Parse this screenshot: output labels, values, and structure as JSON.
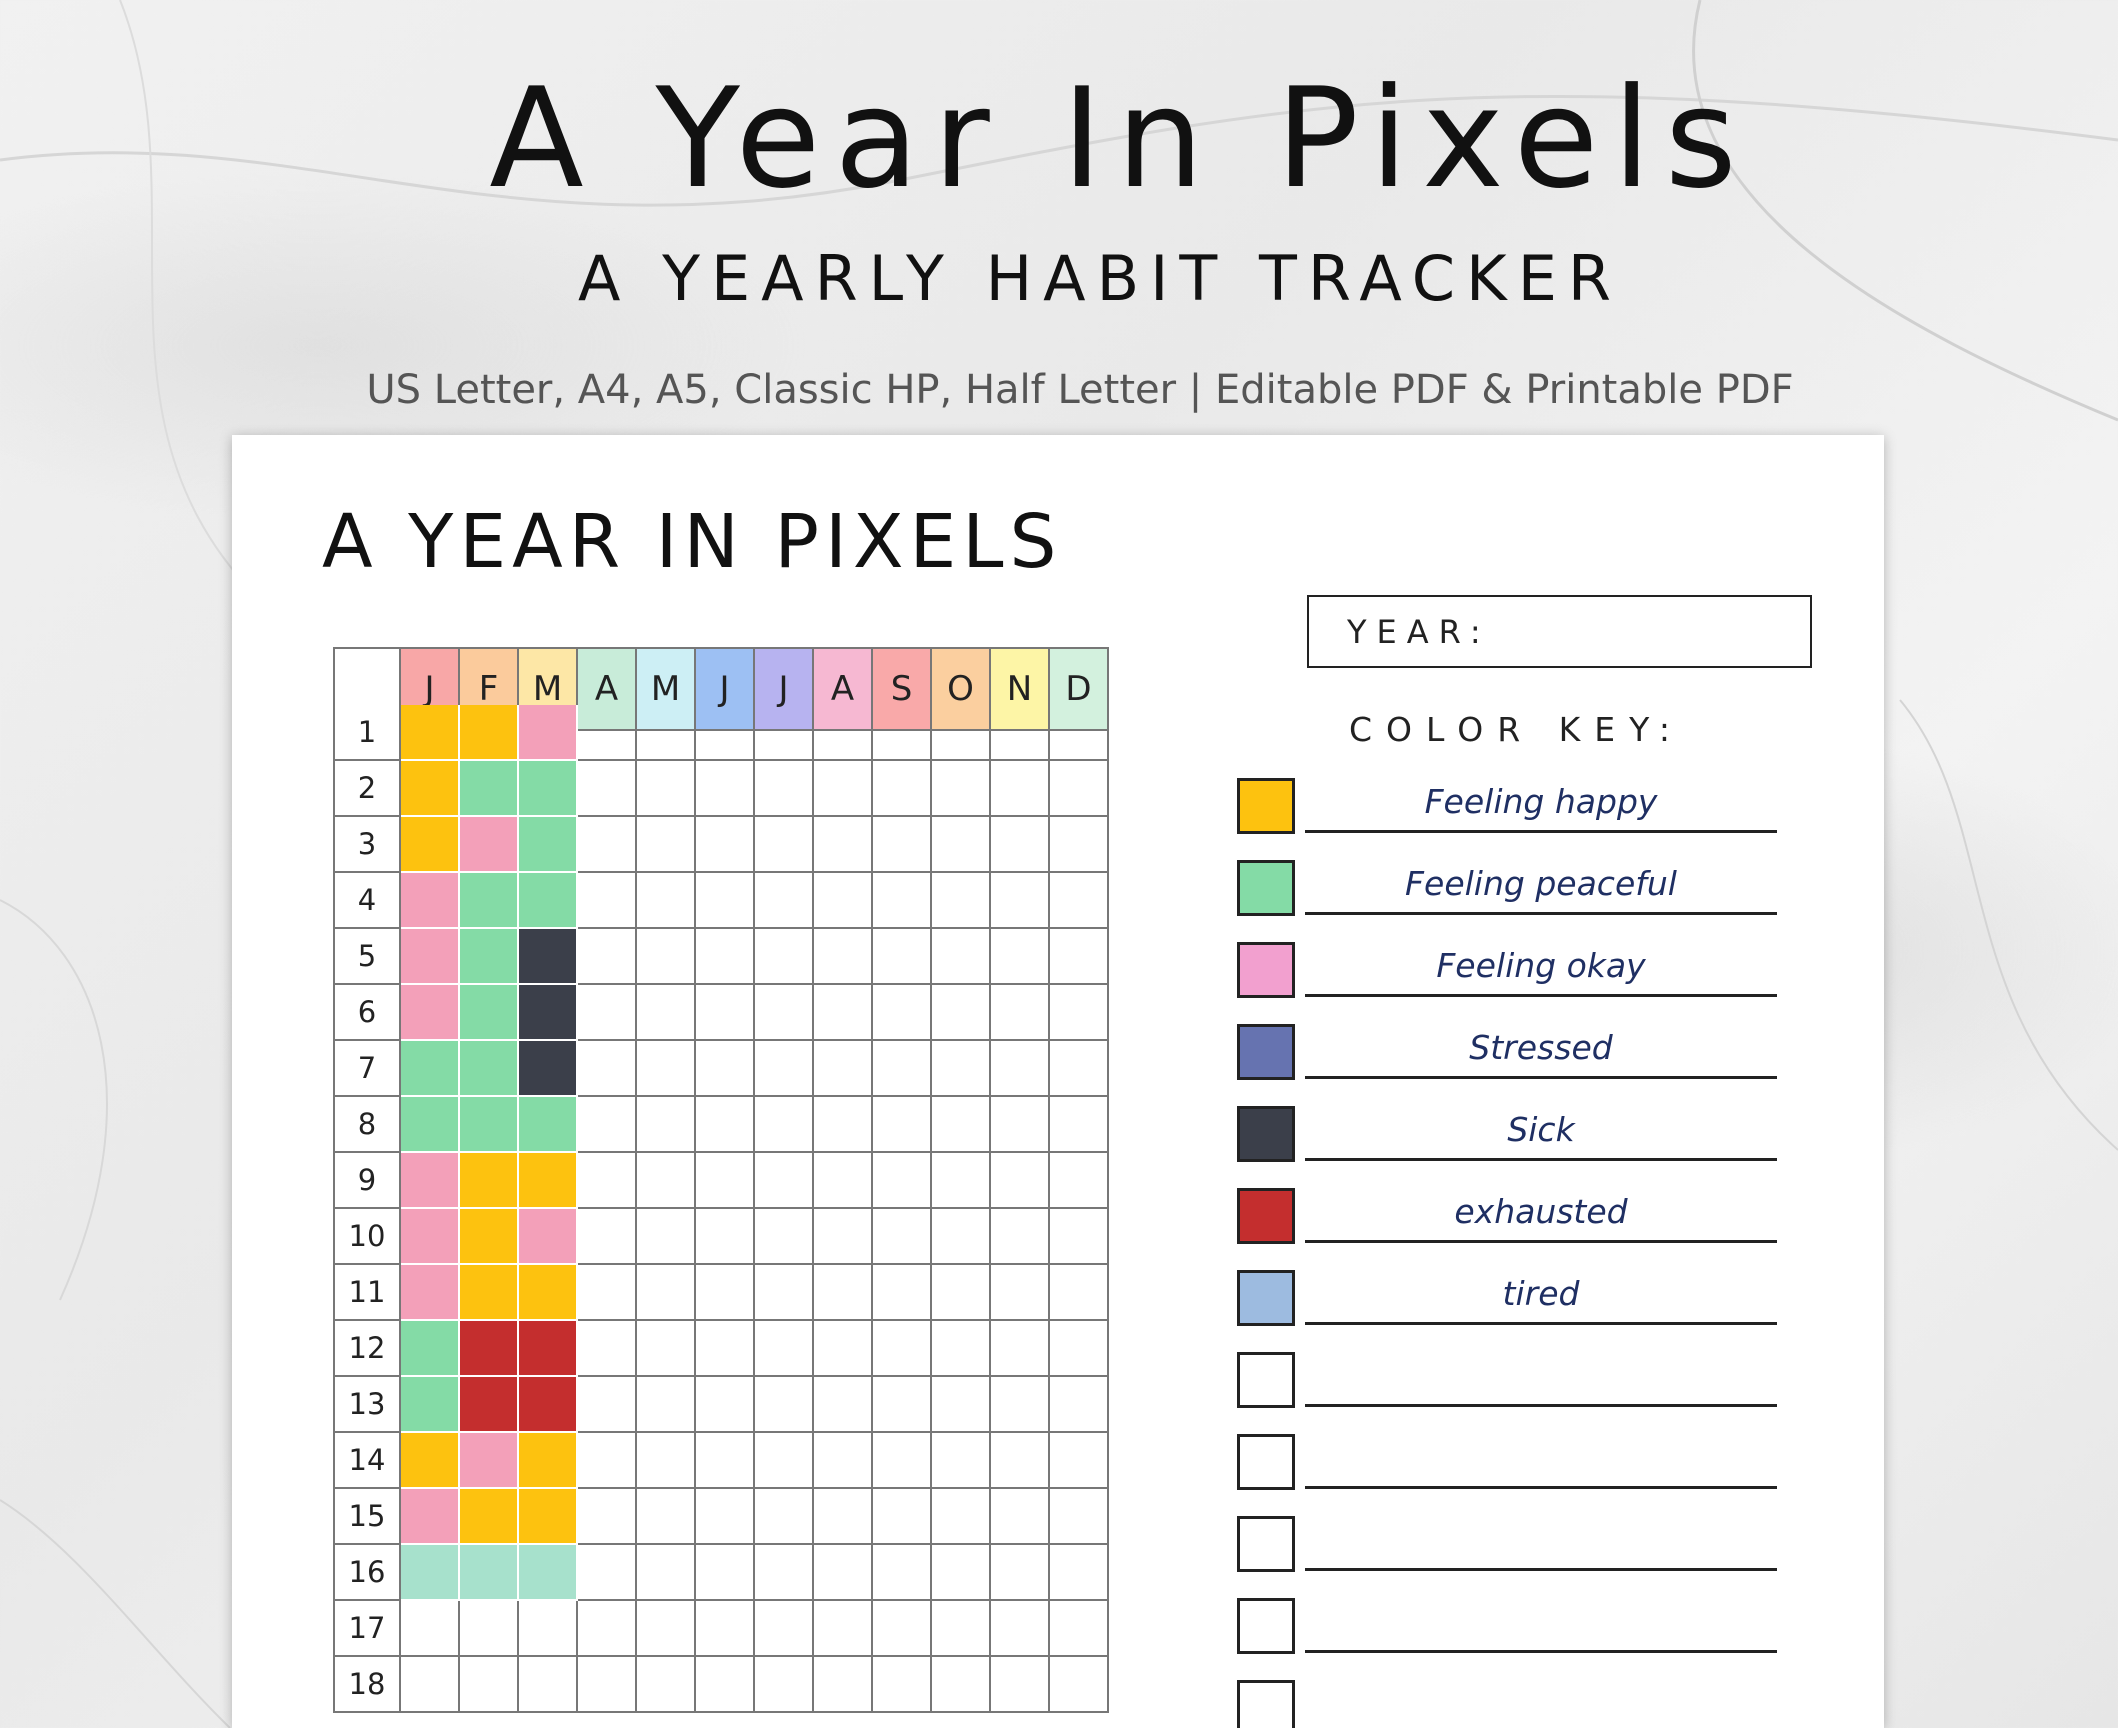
{
  "header": {
    "title": "A Year In Pixels",
    "subtitle": "A YEARLY HABIT TRACKER",
    "formats": "US Letter, A4, A5,  Classic HP, Half Letter | Editable PDF & Printable PDF"
  },
  "sheet": {
    "title": "A YEAR IN PIXELS",
    "year_label": "YEAR:",
    "color_key_title": "COLOR KEY:"
  },
  "months": [
    {
      "label": "J",
      "color": "#f8a7a7"
    },
    {
      "label": "F",
      "color": "#fbcb9c"
    },
    {
      "label": "M",
      "color": "#fde7a6"
    },
    {
      "label": "A",
      "color": "#c8ecd9"
    },
    {
      "label": "M",
      "color": "#cdeff5"
    },
    {
      "label": "J",
      "color": "#9dc0f3"
    },
    {
      "label": "J",
      "color": "#b7b3f0"
    },
    {
      "label": "A",
      "color": "#f6b8d2"
    },
    {
      "label": "S",
      "color": "#f9a9a9"
    },
    {
      "label": "O",
      "color": "#fbcf9f"
    },
    {
      "label": "N",
      "color": "#fdf5a6"
    },
    {
      "label": "D",
      "color": "#d3f1de"
    }
  ],
  "days": [
    "1",
    "2",
    "3",
    "4",
    "5",
    "6",
    "7",
    "8",
    "9",
    "10",
    "11",
    "12",
    "13",
    "14",
    "15",
    "16",
    "17",
    "18"
  ],
  "mood_colors": {
    "happy": "#fdc20f",
    "peaceful": "#84dba6",
    "okay": "#f3a0b9",
    "sick": "#3b3f4a",
    "exhausted": "#c42e2e",
    "mint": "#a7e1cc"
  },
  "pixels": [
    [
      "happy",
      "happy",
      "okay"
    ],
    [
      "happy",
      "peaceful",
      "peaceful"
    ],
    [
      "happy",
      "okay",
      "peaceful"
    ],
    [
      "okay",
      "peaceful",
      "peaceful"
    ],
    [
      "okay",
      "peaceful",
      "sick"
    ],
    [
      "okay",
      "peaceful",
      "sick"
    ],
    [
      "peaceful",
      "peaceful",
      "sick"
    ],
    [
      "peaceful",
      "peaceful",
      "peaceful"
    ],
    [
      "okay",
      "happy",
      "happy"
    ],
    [
      "okay",
      "happy",
      "okay"
    ],
    [
      "okay",
      "happy",
      "happy"
    ],
    [
      "peaceful",
      "exhausted",
      "exhausted"
    ],
    [
      "peaceful",
      "exhausted",
      "exhausted"
    ],
    [
      "happy",
      "okay",
      "happy"
    ],
    [
      "okay",
      "happy",
      "happy"
    ],
    [
      "mint",
      "mint",
      "mint"
    ],
    [],
    []
  ],
  "color_key": [
    {
      "label": "Feeling happy",
      "color": "#fdc20f"
    },
    {
      "label": "Feeling peaceful",
      "color": "#84dba6"
    },
    {
      "label": "Feeling okay",
      "color": "#f2a0cf"
    },
    {
      "label": "Stressed",
      "color": "#6673b0"
    },
    {
      "label": "Sick",
      "color": "#3b3f4a"
    },
    {
      "label": "exhausted",
      "color": "#c42e2e"
    },
    {
      "label": "tired",
      "color": "#9dbbe0"
    },
    {
      "label": "",
      "color": "#ffffff"
    },
    {
      "label": "",
      "color": "#ffffff"
    },
    {
      "label": "",
      "color": "#ffffff"
    },
    {
      "label": "",
      "color": "#ffffff"
    },
    {
      "label": "",
      "color": "#ffffff"
    }
  ]
}
